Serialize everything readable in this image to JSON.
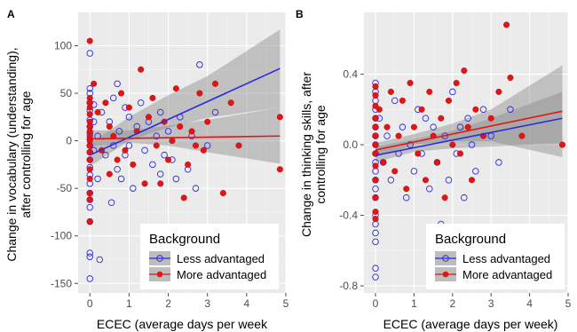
{
  "chart_data": [
    {
      "type": "scatter",
      "panel_label": "A",
      "xlabel": "ECEC (average days per week",
      "ylabel_lines": [
        "Change in vocabulary (understanding),",
        "after controlling for age"
      ],
      "xlim": [
        -0.3,
        5.0
      ],
      "ylim": [
        -160,
        135
      ],
      "xticks": [
        0,
        1,
        2,
        3,
        4,
        5
      ],
      "yticks": [
        -150,
        -100,
        -50,
        0,
        50,
        100
      ],
      "grid": true,
      "legend": {
        "title": "Background",
        "placement": "bottom-right",
        "entries": [
          "Less advantaged",
          "More advantaged"
        ]
      },
      "series": [
        {
          "name": "Less advantaged",
          "color": "#2b2bd9",
          "marker": "open-circle",
          "fit": {
            "x0": 0,
            "y0": -15,
            "x1": 4.85,
            "y1": 76
          },
          "ci_band": [
            [
              0,
              -27,
              -3
            ],
            [
              1,
              0,
              25
            ],
            [
              2,
              14,
              48
            ],
            [
              3,
              24,
              68
            ],
            [
              4.85,
              35,
              117
            ]
          ],
          "points": [
            [
              0,
              92
            ],
            [
              0,
              55
            ],
            [
              0,
              50
            ],
            [
              0,
              40
            ],
            [
              0,
              32
            ],
            [
              0,
              22
            ],
            [
              0,
              15
            ],
            [
              0,
              8
            ],
            [
              0,
              2
            ],
            [
              0,
              -5
            ],
            [
              0,
              -12
            ],
            [
              0,
              -20
            ],
            [
              0,
              -28
            ],
            [
              0,
              -36
            ],
            [
              0,
              -45
            ],
            [
              0,
              -55
            ],
            [
              0,
              -62
            ],
            [
              0,
              -70
            ],
            [
              0,
              -85
            ],
            [
              0,
              -118
            ],
            [
              0,
              -122
            ],
            [
              0,
              -145
            ],
            [
              0.1,
              38
            ],
            [
              0.1,
              20
            ],
            [
              0.1,
              -10
            ],
            [
              0.2,
              -40
            ],
            [
              0.2,
              5
            ],
            [
              0.25,
              -125
            ],
            [
              0.3,
              30
            ],
            [
              0.4,
              -15
            ],
            [
              0.5,
              20
            ],
            [
              0.55,
              -65
            ],
            [
              0.6,
              45
            ],
            [
              0.6,
              -5
            ],
            [
              0.7,
              -30
            ],
            [
              0.7,
              60
            ],
            [
              0.75,
              10
            ],
            [
              0.8,
              -40
            ],
            [
              0.9,
              35
            ],
            [
              0.9,
              -15
            ],
            [
              1.0,
              25
            ],
            [
              1.0,
              -5
            ],
            [
              1.1,
              -50
            ],
            [
              1.2,
              15
            ],
            [
              1.3,
              40
            ],
            [
              1.4,
              -10
            ],
            [
              1.5,
              20
            ],
            [
              1.6,
              -25
            ],
            [
              1.7,
              5
            ],
            [
              1.8,
              -35
            ],
            [
              1.8,
              30
            ],
            [
              1.9,
              -15
            ],
            [
              2.0,
              10
            ],
            [
              2.1,
              -20
            ],
            [
              2.2,
              -40
            ],
            [
              2.3,
              25
            ],
            [
              2.5,
              -30
            ],
            [
              2.6,
              5
            ],
            [
              2.7,
              -50
            ],
            [
              2.8,
              80
            ],
            [
              3.0,
              -5
            ],
            [
              3.2,
              30
            ]
          ]
        },
        {
          "name": "More advantaged",
          "color": "#e01616",
          "marker": "filled-circle",
          "fit": {
            "x0": 0,
            "y0": 2,
            "x1": 4.85,
            "y1": 5
          },
          "ci_band": [
            [
              0,
              -6,
              11
            ],
            [
              1,
              -2,
              11
            ],
            [
              2,
              -5,
              16
            ],
            [
              3,
              -12,
              22
            ],
            [
              4.85,
              -24,
              35
            ]
          ],
          "points": [
            [
              0,
              105
            ],
            [
              0,
              45
            ],
            [
              0,
              40
            ],
            [
              0,
              35
            ],
            [
              0,
              28
            ],
            [
              0,
              20
            ],
            [
              0,
              15
            ],
            [
              0,
              10
            ],
            [
              0,
              5
            ],
            [
              0,
              0
            ],
            [
              0,
              -5
            ],
            [
              0,
              -12
            ],
            [
              0,
              -20
            ],
            [
              0,
              -30
            ],
            [
              0,
              -40
            ],
            [
              0,
              -55
            ],
            [
              0,
              -62
            ],
            [
              0,
              -85
            ],
            [
              0.1,
              60
            ],
            [
              0.2,
              30
            ],
            [
              0.3,
              -10
            ],
            [
              0.4,
              40
            ],
            [
              0.5,
              15
            ],
            [
              0.5,
              -35
            ],
            [
              0.6,
              5
            ],
            [
              0.7,
              -20
            ],
            [
              0.8,
              50
            ],
            [
              0.9,
              -10
            ],
            [
              1.0,
              35
            ],
            [
              1.1,
              -25
            ],
            [
              1.2,
              10
            ],
            [
              1.3,
              75
            ],
            [
              1.4,
              -45
            ],
            [
              1.5,
              25
            ],
            [
              1.6,
              45
            ],
            [
              1.7,
              -5
            ],
            [
              1.8,
              -45
            ],
            [
              1.9,
              20
            ],
            [
              2.0,
              -20
            ],
            [
              2.1,
              0
            ],
            [
              2.2,
              55
            ],
            [
              2.3,
              15
            ],
            [
              2.4,
              -60
            ],
            [
              2.5,
              -25
            ],
            [
              2.6,
              10
            ],
            [
              2.7,
              -5
            ],
            [
              2.8,
              50
            ],
            [
              2.9,
              -10
            ],
            [
              3.0,
              20
            ],
            [
              3.2,
              60
            ],
            [
              3.4,
              -55
            ],
            [
              3.6,
              40
            ],
            [
              3.8,
              -5
            ],
            [
              4.85,
              25
            ],
            [
              4.85,
              -30
            ]
          ]
        }
      ]
    },
    {
      "type": "scatter",
      "panel_label": "B",
      "xlabel": "ECEC (average days per week)",
      "ylabel_lines": [
        "Change in thinking skills, after",
        "controlling for age"
      ],
      "xlim": [
        -0.3,
        5.0
      ],
      "ylim": [
        -0.84,
        0.75
      ],
      "xticks": [
        0,
        1,
        2,
        3,
        4,
        5
      ],
      "yticks": [
        -0.8,
        -0.4,
        0.0,
        0.4
      ],
      "ytick_labels": [
        "-0.8",
        "-0.4",
        "0.0",
        "0.4"
      ],
      "grid": true,
      "legend": {
        "title": "Background",
        "placement": "bottom-right",
        "entries": [
          "Less advantaged",
          "More advantaged"
        ]
      },
      "series": [
        {
          "name": "Less advantaged",
          "color": "#2b2bd9",
          "marker": "open-circle",
          "fit": {
            "x0": 0,
            "y0": -0.06,
            "x1": 4.85,
            "y1": 0.15
          },
          "ci_band": [
            [
              0,
              -0.1,
              -0.01
            ],
            [
              1,
              -0.04,
              0.03
            ],
            [
              2,
              -0.02,
              0.08
            ],
            [
              3,
              -0.01,
              0.15
            ],
            [
              4.85,
              0.01,
              0.3
            ]
          ],
          "points": [
            [
              0,
              0.35
            ],
            [
              0,
              0.3
            ],
            [
              0,
              0.25
            ],
            [
              0,
              0.2
            ],
            [
              0,
              0.15
            ],
            [
              0,
              0.1
            ],
            [
              0,
              0.05
            ],
            [
              0,
              0.0
            ],
            [
              0,
              -0.05
            ],
            [
              0,
              -0.1
            ],
            [
              0,
              -0.15
            ],
            [
              0,
              -0.2
            ],
            [
              0,
              -0.25
            ],
            [
              0,
              -0.3
            ],
            [
              0,
              -0.4
            ],
            [
              0,
              -0.45
            ],
            [
              0,
              -0.5
            ],
            [
              0,
              -0.55
            ],
            [
              0,
              -0.7
            ],
            [
              0,
              -0.75
            ],
            [
              0.1,
              0.15
            ],
            [
              0.2,
              -0.1
            ],
            [
              0.3,
              0.05
            ],
            [
              0.4,
              -0.2
            ],
            [
              0.5,
              0.25
            ],
            [
              0.6,
              -0.05
            ],
            [
              0.7,
              0.1
            ],
            [
              0.8,
              -0.3
            ],
            [
              0.9,
              0.0
            ],
            [
              1.0,
              -0.15
            ],
            [
              1.1,
              0.2
            ],
            [
              1.2,
              -0.05
            ],
            [
              1.3,
              0.15
            ],
            [
              1.4,
              -0.25
            ],
            [
              1.5,
              0.1
            ],
            [
              1.6,
              -0.1
            ],
            [
              1.7,
              -0.45
            ],
            [
              1.8,
              0.05
            ],
            [
              1.9,
              -0.2
            ],
            [
              2.0,
              0.3
            ],
            [
              2.1,
              -0.05
            ],
            [
              2.2,
              0.1
            ],
            [
              2.3,
              -0.3
            ],
            [
              2.4,
              0.15
            ],
            [
              2.5,
              0.0
            ],
            [
              2.6,
              -0.15
            ],
            [
              2.8,
              0.2
            ],
            [
              3.0,
              0.05
            ],
            [
              3.2,
              -0.1
            ],
            [
              3.5,
              0.2
            ]
          ]
        },
        {
          "name": "More advantaged",
          "color": "#e01616",
          "marker": "filled-circle",
          "fit": {
            "x0": 0,
            "y0": -0.03,
            "x1": 4.85,
            "y1": 0.19
          },
          "ci_band": [
            [
              0,
              -0.07,
              0.01
            ],
            [
              1,
              -0.0,
              0.06
            ],
            [
              2,
              0.02,
              0.12
            ],
            [
              3,
              0.02,
              0.2
            ],
            [
              4.85,
              -0.07,
              0.45
            ]
          ],
          "points": [
            [
              0,
              0.33
            ],
            [
              0,
              0.28
            ],
            [
              0,
              0.22
            ],
            [
              0,
              0.15
            ],
            [
              0,
              0.1
            ],
            [
              0,
              0.05
            ],
            [
              0,
              0.0
            ],
            [
              0,
              -0.05
            ],
            [
              0,
              -0.12
            ],
            [
              0,
              -0.2
            ],
            [
              0,
              -0.3
            ],
            [
              0,
              -0.38
            ],
            [
              0,
              -0.42
            ],
            [
              0.1,
              0.2
            ],
            [
              0.2,
              -0.1
            ],
            [
              0.3,
              0.1
            ],
            [
              0.4,
              0.3
            ],
            [
              0.5,
              -0.15
            ],
            [
              0.6,
              0.05
            ],
            [
              0.7,
              0.25
            ],
            [
              0.8,
              -0.25
            ],
            [
              0.9,
              0.35
            ],
            [
              1.0,
              0.1
            ],
            [
              1.1,
              -0.05
            ],
            [
              1.2,
              0.2
            ],
            [
              1.3,
              -0.2
            ],
            [
              1.4,
              0.3
            ],
            [
              1.5,
              0.05
            ],
            [
              1.6,
              -0.1
            ],
            [
              1.7,
              0.15
            ],
            [
              1.8,
              -0.3
            ],
            [
              1.9,
              0.25
            ],
            [
              2.0,
              0.0
            ],
            [
              2.1,
              0.35
            ],
            [
              2.2,
              -0.05
            ],
            [
              2.3,
              0.42
            ],
            [
              2.4,
              0.1
            ],
            [
              2.5,
              -0.2
            ],
            [
              2.6,
              0.2
            ],
            [
              2.8,
              0.05
            ],
            [
              3.0,
              0.15
            ],
            [
              3.2,
              0.3
            ],
            [
              3.4,
              0.68
            ],
            [
              3.5,
              0.38
            ],
            [
              3.8,
              0.05
            ],
            [
              4.85,
              0.0
            ]
          ]
        }
      ]
    }
  ]
}
